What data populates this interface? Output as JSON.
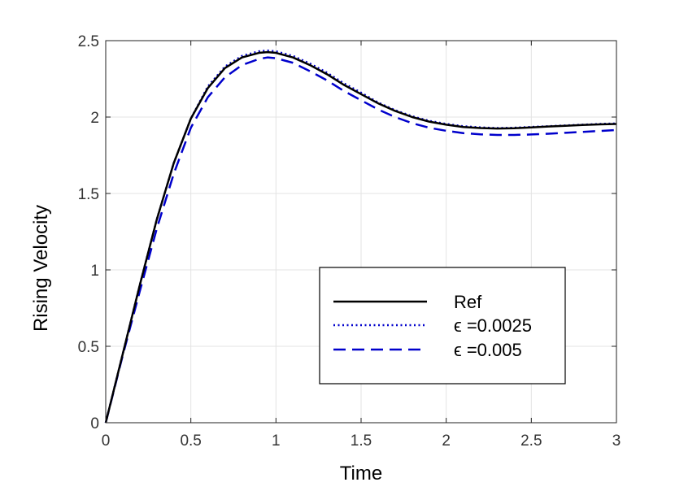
{
  "chart_data": {
    "type": "line",
    "title": "",
    "xlabel": "Time",
    "ylabel": "Rising Velocity",
    "xlim": [
      0,
      3
    ],
    "ylim": [
      0,
      2.5
    ],
    "xticks": [
      0,
      0.5,
      1,
      1.5,
      2,
      2.5,
      3
    ],
    "xtick_labels": [
      "0",
      "0.5",
      "1",
      "1.5",
      "2",
      "2.5",
      "3"
    ],
    "yticks": [
      0,
      0.5,
      1,
      1.5,
      2,
      2.5
    ],
    "ytick_labels": [
      "0",
      "0.5",
      "1",
      "1.5",
      "2",
      "2.5"
    ],
    "grid": true,
    "legend_position": "lower-right",
    "x": [
      0,
      0.1,
      0.2,
      0.3,
      0.4,
      0.5,
      0.6,
      0.7,
      0.8,
      0.9,
      0.95,
      1.0,
      1.1,
      1.2,
      1.3,
      1.4,
      1.5,
      1.6,
      1.7,
      1.8,
      1.9,
      2.0,
      2.1,
      2.2,
      2.3,
      2.4,
      2.5,
      2.6,
      2.7,
      2.8,
      2.9,
      3.0
    ],
    "series": [
      {
        "name": "Ref",
        "color": "#000000",
        "style": "solid",
        "values": [
          0,
          0.45,
          0.9,
          1.33,
          1.7,
          1.99,
          2.19,
          2.32,
          2.39,
          2.42,
          2.425,
          2.42,
          2.39,
          2.34,
          2.28,
          2.21,
          2.15,
          2.09,
          2.04,
          2.0,
          1.97,
          1.95,
          1.935,
          1.928,
          1.925,
          1.927,
          1.932,
          1.938,
          1.943,
          1.948,
          1.952,
          1.955
        ]
      },
      {
        "name": "ϵ =0.0025",
        "color": "#0000cc",
        "style": "dotted",
        "values": [
          0,
          0.45,
          0.9,
          1.33,
          1.7,
          1.99,
          2.2,
          2.33,
          2.4,
          2.43,
          2.435,
          2.43,
          2.4,
          2.35,
          2.29,
          2.22,
          2.16,
          2.095,
          2.045,
          2.005,
          1.975,
          1.955,
          1.94,
          1.932,
          1.928,
          1.93,
          1.935,
          1.94,
          1.945,
          1.95,
          1.955,
          1.958
        ]
      },
      {
        "name": "ϵ =0.005",
        "color": "#0000cc",
        "style": "dashed",
        "values": [
          0,
          0.44,
          0.86,
          1.27,
          1.63,
          1.93,
          2.13,
          2.26,
          2.34,
          2.38,
          2.39,
          2.385,
          2.355,
          2.3,
          2.24,
          2.17,
          2.11,
          2.05,
          2.0,
          1.96,
          1.93,
          1.91,
          1.895,
          1.887,
          1.883,
          1.883,
          1.886,
          1.891,
          1.897,
          1.903,
          1.909,
          1.915
        ]
      }
    ]
  }
}
